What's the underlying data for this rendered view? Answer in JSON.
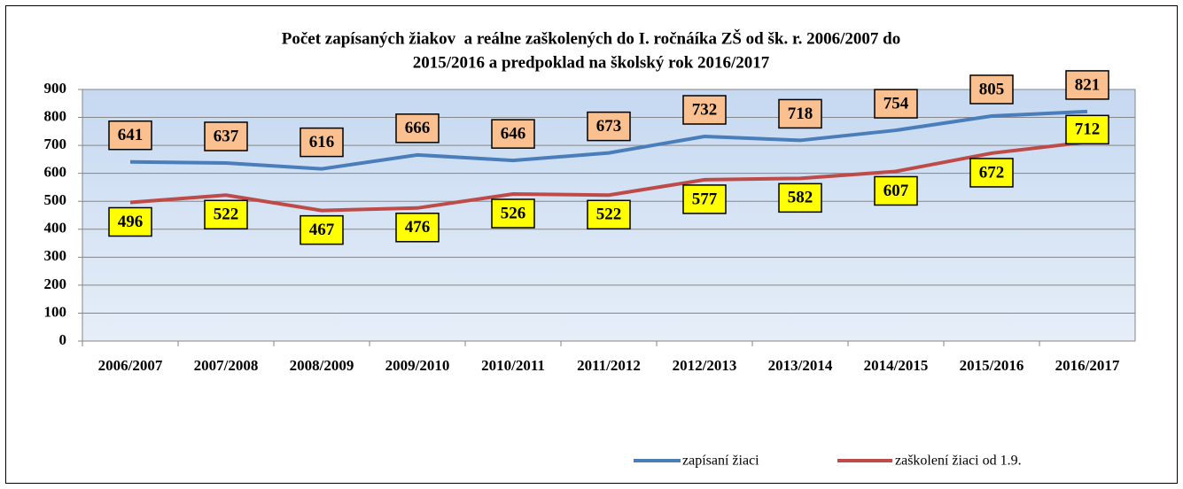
{
  "chart_data": {
    "type": "line",
    "title": [
      "Počet zapísaných žiakov  a reálne zaškolených do I. ročnáíka ZŠ od šk. r. 2006/2007 do",
      "2015/2016 a predpoklad na školský rok 2016/2017"
    ],
    "categories": [
      "2006/2007",
      "2007/2008",
      "2008/2009",
      "2009/2010",
      "2010/2011",
      "2011/2012",
      "2012/2013",
      "2013/2014",
      "2014/2015",
      "2015/2016",
      "2016/2017"
    ],
    "series": [
      {
        "name": "zapísaní žiaci",
        "color": "#4a7ebb",
        "label_fill": "#fac090",
        "values": [
          641,
          637,
          616,
          666,
          646,
          673,
          732,
          718,
          754,
          805,
          821
        ]
      },
      {
        "name": "zaškolení žiaci od 1.9.",
        "color": "#be4b48",
        "label_fill": "#ffff00",
        "values": [
          496,
          522,
          467,
          476,
          526,
          522,
          577,
          582,
          607,
          672,
          712
        ]
      }
    ],
    "ylim": [
      0,
      900
    ],
    "yticks": [
      0,
      100,
      200,
      300,
      400,
      500,
      600,
      700,
      800,
      900
    ],
    "grid": true,
    "legend": "bottom-right"
  }
}
